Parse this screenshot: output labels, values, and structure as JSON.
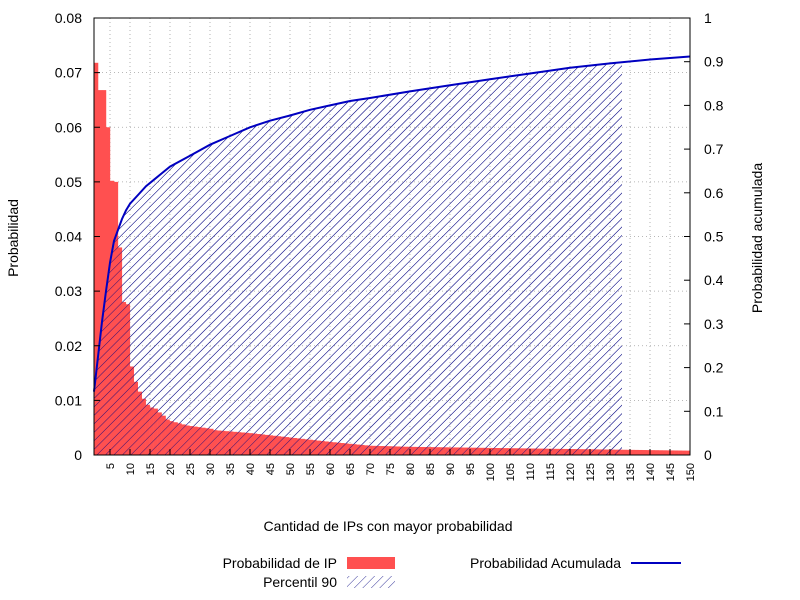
{
  "chart_data": {
    "type": "bar",
    "title": "",
    "xlabel": "Cantidad de IPs con mayor probabilidad",
    "ylabel": "Probabilidad",
    "y2label": "Probabilidad acumulada",
    "xlim": [
      1,
      150
    ],
    "ylim": [
      0,
      0.08
    ],
    "y2lim": [
      0,
      1
    ],
    "y_ticks": [
      "0",
      "0.01",
      "0.02",
      "0.03",
      "0.04",
      "0.05",
      "0.06",
      "0.07",
      "0.08"
    ],
    "y2_ticks": [
      "0",
      "0.1",
      "0.2",
      "0.3",
      "0.4",
      "0.5",
      "0.6",
      "0.7",
      "0.8",
      "0.9",
      "1"
    ],
    "x_ticks": [
      "5",
      "10",
      "15",
      "20",
      "25",
      "30",
      "35",
      "40",
      "45",
      "50",
      "55",
      "60",
      "65",
      "70",
      "75",
      "80",
      "85",
      "90",
      "95",
      "100",
      "105",
      "110",
      "115",
      "120",
      "125",
      "130",
      "135",
      "140",
      "145",
      "150"
    ],
    "grid": true,
    "percentile_90_x": 133,
    "colors": {
      "bars": "#ff5050",
      "cumulative": "#0000c0",
      "grid": "#a0a0a0",
      "hatch": "#000080"
    },
    "legend": {
      "placement": "bottom",
      "bars_label": "Probabilidad de IP",
      "percentile_label": "Percentil 90",
      "cumulative_label": "Probabilidad Acumulada"
    },
    "series": [
      {
        "name": "Probabilidad de IP",
        "type": "bar",
        "x": [
          1,
          2,
          3,
          4,
          5,
          6,
          7,
          8,
          9,
          10,
          11,
          12,
          13,
          14,
          15,
          16,
          17,
          18,
          19,
          20,
          21,
          22,
          23,
          24,
          25,
          26,
          27,
          28,
          29,
          30
        ],
        "values": [
          0.0718,
          0.0668,
          0.0668,
          0.06,
          0.0502,
          0.05,
          0.038,
          0.028,
          0.0276,
          0.0162,
          0.0134,
          0.0116,
          0.0103,
          0.0092,
          0.0087,
          0.0085,
          0.0078,
          0.0072,
          0.0065,
          0.0062,
          0.006,
          0.0058,
          0.0056,
          0.0054,
          0.0053,
          0.0052,
          0.0051,
          0.005,
          0.0049,
          0.0048
        ],
        "tail": [
          [
            30,
            0.0046
          ],
          [
            40,
            0.004
          ],
          [
            50,
            0.0032
          ],
          [
            60,
            0.0024
          ],
          [
            70,
            0.0017
          ],
          [
            80,
            0.0015
          ],
          [
            90,
            0.0014
          ],
          [
            100,
            0.0013
          ],
          [
            110,
            0.0012
          ],
          [
            120,
            0.0011
          ],
          [
            130,
            0.001
          ],
          [
            140,
            0.0009
          ],
          [
            150,
            0.0008
          ]
        ]
      },
      {
        "name": "Probabilidad Acumulada",
        "type": "line",
        "x": [
          1,
          2,
          3,
          4,
          5,
          6,
          7,
          8,
          9,
          10,
          12,
          14,
          16,
          18,
          20,
          25,
          30,
          35,
          40,
          45,
          50,
          55,
          60,
          65,
          70,
          80,
          90,
          100,
          110,
          120,
          130,
          140,
          150
        ],
        "values": [
          0.145,
          0.225,
          0.305,
          0.375,
          0.44,
          0.49,
          0.515,
          0.54,
          0.56,
          0.575,
          0.595,
          0.615,
          0.63,
          0.645,
          0.66,
          0.685,
          0.71,
          0.73,
          0.75,
          0.765,
          0.777,
          0.79,
          0.8,
          0.81,
          0.817,
          0.832,
          0.846,
          0.86,
          0.873,
          0.886,
          0.896,
          0.905,
          0.912
        ]
      }
    ]
  }
}
